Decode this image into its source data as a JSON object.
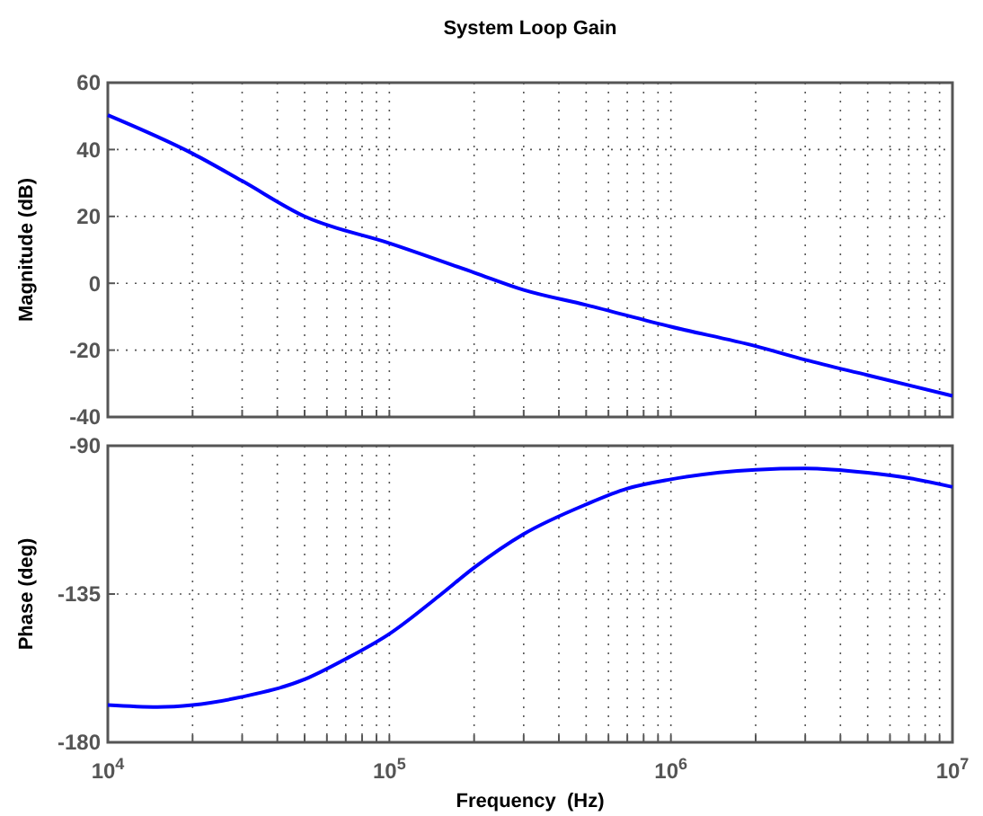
{
  "chart_data": [
    {
      "type": "line",
      "title": "System Loop Gain",
      "ylabel": "Magnitude (dB)",
      "log": "x",
      "grid": true,
      "tick_labels": "y",
      "xlim": [
        10000,
        10000000
      ],
      "xticks": [
        {
          "value": 10000,
          "label": null
        },
        {
          "value": 20000,
          "label": null
        },
        {
          "value": 30000,
          "label": null
        },
        {
          "value": 40000,
          "label": null
        },
        {
          "value": 50000,
          "label": null
        },
        {
          "value": 60000,
          "label": null
        },
        {
          "value": 70000,
          "label": null
        },
        {
          "value": 80000,
          "label": null
        },
        {
          "value": 90000,
          "label": null
        },
        {
          "value": 100000,
          "label": null
        },
        {
          "value": 200000,
          "label": null
        },
        {
          "value": 300000,
          "label": null
        },
        {
          "value": 400000,
          "label": null
        },
        {
          "value": 500000,
          "label": null
        },
        {
          "value": 600000,
          "label": null
        },
        {
          "value": 700000,
          "label": null
        },
        {
          "value": 800000,
          "label": null
        },
        {
          "value": 900000,
          "label": null
        },
        {
          "value": 1000000,
          "label": null
        },
        {
          "value": 2000000,
          "label": null
        },
        {
          "value": 3000000,
          "label": null
        },
        {
          "value": 4000000,
          "label": null
        },
        {
          "value": 5000000,
          "label": null
        },
        {
          "value": 6000000,
          "label": null
        },
        {
          "value": 7000000,
          "label": null
        },
        {
          "value": 8000000,
          "label": null
        },
        {
          "value": 9000000,
          "label": null
        },
        {
          "value": 10000000,
          "label": null
        }
      ],
      "ylim": [
        -40,
        60
      ],
      "yticks": [
        -40,
        -20,
        0,
        20,
        40,
        60
      ],
      "x": [
        10000,
        20000,
        30000,
        50000,
        100000,
        200000,
        300000,
        500000,
        1000000,
        2000000,
        3000000,
        5000000,
        10000000
      ],
      "series": [
        {
          "color": "#0000ff",
          "values": [
            50.3,
            38.8,
            30.6,
            20,
            12,
            3.2,
            -2,
            -6.5,
            -13,
            -18.8,
            -22.9,
            -27.5,
            -33.7
          ]
        }
      ]
    },
    {
      "type": "line",
      "ylabel": "Phase (deg)",
      "xlabel": "Frequency  (Hz)",
      "log": "x",
      "grid": true,
      "xlim": [
        10000,
        10000000
      ],
      "xticks": [
        {
          "value": 10000,
          "label": "10$^{4}$"
        },
        {
          "value": 20000,
          "label": null
        },
        {
          "value": 30000,
          "label": null
        },
        {
          "value": 40000,
          "label": null
        },
        {
          "value": 50000,
          "label": null
        },
        {
          "value": 60000,
          "label": null
        },
        {
          "value": 70000,
          "label": null
        },
        {
          "value": 80000,
          "label": null
        },
        {
          "value": 90000,
          "label": null
        },
        {
          "value": 100000,
          "label": "10$^{5}$"
        },
        {
          "value": 200000,
          "label": null
        },
        {
          "value": 300000,
          "label": null
        },
        {
          "value": 400000,
          "label": null
        },
        {
          "value": 500000,
          "label": null
        },
        {
          "value": 600000,
          "label": null
        },
        {
          "value": 700000,
          "label": null
        },
        {
          "value": 800000,
          "label": null
        },
        {
          "value": 900000,
          "label": null
        },
        {
          "value": 1000000,
          "label": "10$^{6}$"
        },
        {
          "value": 2000000,
          "label": null
        },
        {
          "value": 3000000,
          "label": null
        },
        {
          "value": 4000000,
          "label": null
        },
        {
          "value": 5000000,
          "label": null
        },
        {
          "value": 6000000,
          "label": null
        },
        {
          "value": 7000000,
          "label": null
        },
        {
          "value": 8000000,
          "label": null
        },
        {
          "value": 9000000,
          "label": null
        },
        {
          "value": 10000000,
          "label": "10$^{7}$"
        }
      ],
      "ylim": [
        -180,
        -90
      ],
      "yticks": [
        -180,
        -135,
        -90
      ],
      "x": [
        10000,
        15000,
        20000,
        30000,
        50000,
        70000,
        100000,
        150000,
        200000,
        300000,
        500000,
        700000,
        1000000,
        2000000,
        3000000,
        5000000,
        7000000,
        10000000
      ],
      "series": [
        {
          "color": "#0000ff",
          "values": [
            -168.7,
            -169.3,
            -168.7,
            -166.2,
            -160.9,
            -154.7,
            -147.1,
            -135.6,
            -127,
            -116.8,
            -107.8,
            -103,
            -100.2,
            -97.3,
            -96.9,
            -98.2,
            -99.8,
            -102.5
          ]
        }
      ]
    }
  ]
}
